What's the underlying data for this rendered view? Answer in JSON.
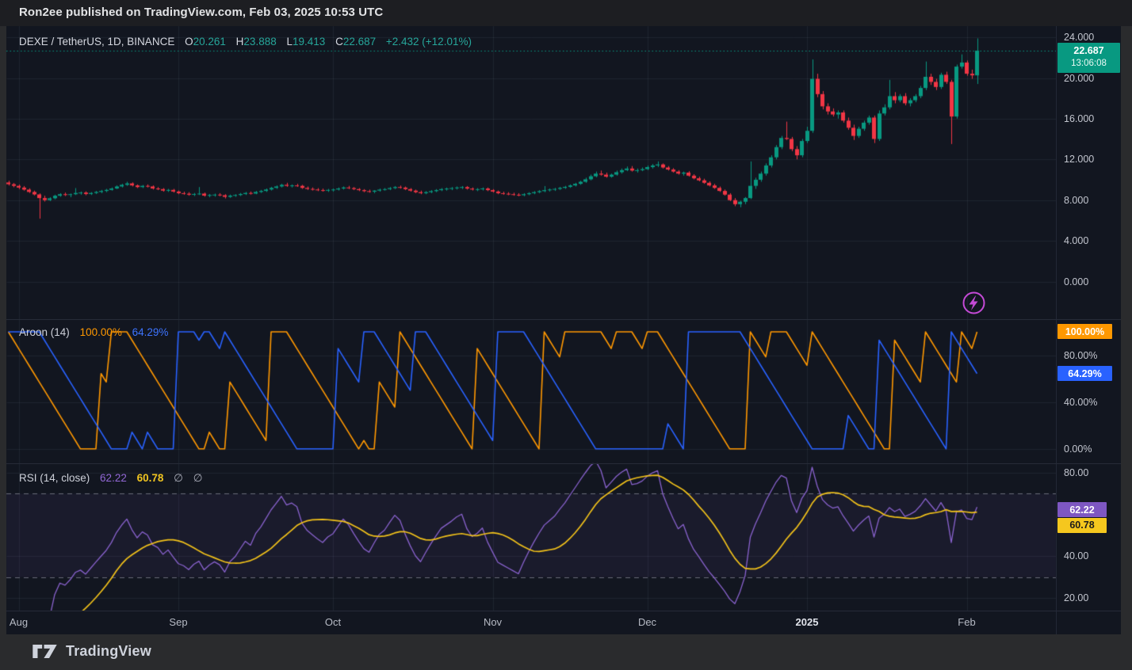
{
  "header": {
    "publish_text": "Ron2ee published on TradingView.com, Feb 03, 2025 10:53 UTC"
  },
  "chart": {
    "legend": {
      "symbol": "DEXE / TetherUS, 1D, BINANCE",
      "o_label": "O",
      "o": "20.261",
      "h_label": "H",
      "h": "23.888",
      "l_label": "L",
      "l": "19.413",
      "c_label": "C",
      "c": "22.687",
      "change": "+2.432 (+12.01%)"
    },
    "price_badge": {
      "price": "22.687",
      "countdown": "13:06:08",
      "value": 22.687
    }
  },
  "aroon": {
    "title": "Aroon (14)",
    "up_value": "100.00%",
    "down_value": "64.29%",
    "badges": {
      "up": "100.00%",
      "up_val": 100,
      "down": "64.29%",
      "down_val": 64.29
    }
  },
  "rsi": {
    "title": "RSI (14, close)",
    "value": "62.22",
    "ma_value": "60.78",
    "empty1": "∅",
    "empty2": "∅",
    "badges": {
      "rsi": "62.22",
      "rsi_val": 62.22,
      "ma": "60.78",
      "ma_val": 60.78
    }
  },
  "footer": {
    "brand": "TradingView"
  },
  "colors": {
    "up": "#089981",
    "down": "#f23645",
    "aroon_up": "#ff9800",
    "aroon_down": "#2962ff",
    "rsi": "#8a63cf",
    "rsi_ma": "#f2c21a",
    "rsi_band": "rgba(126,87,194,0.08)",
    "rsi_limit": "#6a6d7a",
    "grid": "rgba(197,203,224,0.08)",
    "last_price_line": "#089981",
    "flash": "#c44ad6",
    "chart_bg": "#121620"
  },
  "chart_data": {
    "type": "candlestick",
    "symbol": "DEXE / TetherUS",
    "interval": "1D",
    "exchange": "BINANCE",
    "last_price": 22.687,
    "change": 2.432,
    "change_pct": 12.01,
    "price_axis": {
      "range": [
        -3.66,
        25.09
      ],
      "ticks": [
        {
          "label": "24.000",
          "value": 24
        },
        {
          "label": "20.000",
          "value": 20
        },
        {
          "label": "16.000",
          "value": 16
        },
        {
          "label": "12.000",
          "value": 12
        },
        {
          "label": "8.000",
          "value": 8
        },
        {
          "label": "4.000",
          "value": 4
        },
        {
          "label": "0.000",
          "value": 0
        }
      ]
    },
    "aroon_axis": {
      "range": [
        -12.3,
        110.8
      ],
      "length": 14,
      "current_up": 100.0,
      "current_down": 64.29,
      "ticks": [
        {
          "label": "80.00%",
          "value": 80
        },
        {
          "label": "40.00%",
          "value": 40
        },
        {
          "label": "0.00%",
          "value": 0
        }
      ]
    },
    "rsi_axis": {
      "range": [
        13.9,
        84.6
      ],
      "length": 14,
      "source": "close",
      "current": 62.22,
      "current_ma": 60.78,
      "upper_limit": 70,
      "lower_limit": 30,
      "ticks": [
        {
          "label": "80.00",
          "value": 80
        },
        {
          "label": "40.00",
          "value": 40
        },
        {
          "label": "20.00",
          "value": 20
        }
      ]
    },
    "time_axis": {
      "months": [
        {
          "label": "Aug",
          "index": 2,
          "bold": false
        },
        {
          "label": "Sep",
          "index": 33,
          "bold": false
        },
        {
          "label": "Oct",
          "index": 63,
          "bold": false
        },
        {
          "label": "Nov",
          "index": 94,
          "bold": false
        },
        {
          "label": "Dec",
          "index": 124,
          "bold": false
        },
        {
          "label": "2025",
          "index": 155,
          "bold": true
        },
        {
          "label": "Feb",
          "index": 186,
          "bold": false
        }
      ],
      "start_date": "2024-07-30",
      "end_date": "2025-02-03"
    },
    "candles": [
      [
        9.75,
        9.92,
        9.45,
        9.58
      ],
      [
        9.58,
        9.7,
        9.28,
        9.42
      ],
      [
        9.42,
        9.55,
        9.1,
        9.25
      ],
      [
        9.25,
        9.4,
        8.95,
        9.05
      ],
      [
        9.05,
        9.18,
        8.72,
        8.82
      ],
      [
        8.82,
        8.95,
        8.48,
        8.58
      ],
      [
        8.58,
        8.68,
        6.2,
        8.22
      ],
      [
        8.22,
        8.45,
        7.88,
        8.02
      ],
      [
        8.02,
        8.3,
        7.92,
        8.2
      ],
      [
        8.2,
        8.55,
        8.1,
        8.45
      ],
      [
        8.45,
        8.7,
        8.35,
        8.6
      ],
      [
        8.6,
        8.76,
        8.42,
        8.52
      ],
      [
        8.52,
        8.66,
        8.3,
        8.6
      ],
      [
        8.6,
        9.2,
        8.52,
        8.72
      ],
      [
        8.72,
        8.86,
        8.55,
        8.76
      ],
      [
        8.76,
        8.88,
        8.5,
        8.62
      ],
      [
        8.62,
        8.8,
        8.52,
        8.72
      ],
      [
        8.72,
        8.92,
        8.62,
        8.82
      ],
      [
        8.82,
        9.02,
        8.7,
        8.92
      ],
      [
        8.92,
        9.12,
        8.8,
        9.02
      ],
      [
        9.02,
        9.26,
        8.95,
        9.16
      ],
      [
        9.16,
        9.46,
        9.1,
        9.36
      ],
      [
        9.36,
        9.62,
        9.26,
        9.52
      ],
      [
        9.52,
        9.82,
        9.42,
        9.66
      ],
      [
        9.66,
        9.76,
        9.36,
        9.46
      ],
      [
        9.46,
        9.56,
        9.2,
        9.3
      ],
      [
        9.3,
        9.5,
        9.2,
        9.42
      ],
      [
        9.42,
        9.56,
        9.26,
        9.36
      ],
      [
        9.36,
        9.46,
        9.06,
        9.16
      ],
      [
        9.16,
        9.3,
        9.0,
        9.1
      ],
      [
        9.1,
        9.2,
        8.85,
        8.95
      ],
      [
        8.95,
        9.12,
        8.82,
        9.02
      ],
      [
        9.02,
        9.12,
        8.76,
        8.86
      ],
      [
        8.86,
        8.96,
        8.6,
        8.7
      ],
      [
        8.7,
        8.85,
        8.55,
        8.65
      ],
      [
        8.65,
        8.8,
        8.45,
        8.55
      ],
      [
        8.55,
        8.72,
        8.42,
        8.62
      ],
      [
        8.62,
        9.3,
        8.52,
        8.66
      ],
      [
        8.66,
        8.76,
        8.36,
        8.46
      ],
      [
        8.46,
        8.62,
        8.3,
        8.52
      ],
      [
        8.52,
        8.66,
        8.36,
        8.56
      ],
      [
        8.56,
        8.7,
        8.4,
        8.5
      ],
      [
        8.5,
        8.6,
        8.18,
        8.34
      ],
      [
        8.34,
        8.56,
        8.24,
        8.46
      ],
      [
        8.46,
        8.6,
        8.34,
        8.52
      ],
      [
        8.52,
        8.72,
        8.42,
        8.62
      ],
      [
        8.62,
        8.82,
        8.52,
        8.72
      ],
      [
        8.72,
        8.86,
        8.56,
        8.66
      ],
      [
        8.66,
        8.92,
        8.6,
        8.82
      ],
      [
        8.82,
        9.02,
        8.72,
        8.92
      ],
      [
        8.92,
        9.16,
        8.82,
        9.06
      ],
      [
        9.06,
        9.32,
        8.96,
        9.22
      ],
      [
        9.22,
        9.46,
        9.12,
        9.36
      ],
      [
        9.36,
        9.62,
        9.26,
        9.52
      ],
      [
        9.52,
        9.72,
        9.32,
        9.42
      ],
      [
        9.42,
        9.56,
        9.26,
        9.46
      ],
      [
        9.46,
        9.62,
        9.32,
        9.42
      ],
      [
        9.42,
        9.52,
        9.12,
        9.22
      ],
      [
        9.22,
        9.36,
        9.02,
        9.12
      ],
      [
        9.12,
        9.26,
        8.96,
        9.06
      ],
      [
        9.06,
        9.2,
        8.9,
        9.0
      ],
      [
        9.0,
        9.15,
        8.85,
        8.95
      ],
      [
        8.95,
        9.12,
        8.82,
        9.02
      ],
      [
        9.02,
        9.16,
        8.86,
        9.06
      ],
      [
        9.06,
        9.26,
        8.96,
        9.16
      ],
      [
        9.16,
        9.36,
        9.06,
        9.26
      ],
      [
        9.26,
        9.42,
        9.1,
        9.2
      ],
      [
        9.2,
        9.3,
        9.0,
        9.1
      ],
      [
        9.1,
        9.2,
        8.9,
        9.0
      ],
      [
        9.0,
        9.1,
        8.8,
        8.9
      ],
      [
        8.9,
        9.05,
        8.75,
        8.85
      ],
      [
        8.85,
        9.0,
        8.7,
        8.95
      ],
      [
        8.95,
        9.15,
        8.85,
        9.05
      ],
      [
        9.05,
        9.2,
        8.95,
        9.1
      ],
      [
        9.1,
        9.3,
        9.0,
        9.2
      ],
      [
        9.2,
        9.4,
        9.1,
        9.3
      ],
      [
        9.3,
        9.45,
        9.15,
        9.25
      ],
      [
        9.25,
        9.35,
        9.0,
        9.1
      ],
      [
        9.1,
        9.2,
        8.85,
        8.95
      ],
      [
        8.95,
        9.05,
        8.7,
        8.8
      ],
      [
        8.8,
        8.95,
        8.6,
        8.7
      ],
      [
        8.7,
        8.9,
        8.6,
        8.8
      ],
      [
        8.8,
        9.0,
        8.7,
        8.9
      ],
      [
        8.9,
        9.1,
        8.8,
        9.0
      ],
      [
        9.0,
        9.2,
        8.9,
        9.1
      ],
      [
        9.1,
        9.25,
        8.95,
        9.15
      ],
      [
        9.15,
        9.3,
        9.0,
        9.2
      ],
      [
        9.2,
        9.36,
        9.06,
        9.26
      ],
      [
        9.26,
        9.4,
        9.1,
        9.3
      ],
      [
        9.3,
        9.4,
        9.05,
        9.15
      ],
      [
        9.15,
        9.26,
        8.96,
        9.06
      ],
      [
        9.06,
        9.2,
        8.9,
        9.1
      ],
      [
        9.1,
        9.26,
        8.96,
        9.16
      ],
      [
        9.16,
        9.26,
        8.9,
        9.0
      ],
      [
        9.0,
        9.1,
        8.76,
        8.86
      ],
      [
        8.86,
        8.96,
        8.6,
        8.7
      ],
      [
        8.7,
        8.85,
        8.55,
        8.65
      ],
      [
        8.65,
        8.8,
        8.5,
        8.6
      ],
      [
        8.6,
        8.75,
        8.45,
        8.55
      ],
      [
        8.55,
        8.7,
        8.4,
        8.5
      ],
      [
        8.5,
        8.7,
        8.4,
        8.6
      ],
      [
        8.6,
        8.8,
        8.5,
        8.7
      ],
      [
        8.7,
        8.9,
        8.6,
        8.8
      ],
      [
        8.8,
        9.0,
        8.7,
        8.9
      ],
      [
        8.9,
        9.4,
        8.8,
        9.0
      ],
      [
        9.0,
        9.16,
        8.86,
        9.06
      ],
      [
        9.06,
        9.22,
        8.92,
        9.12
      ],
      [
        9.12,
        9.32,
        9.02,
        9.22
      ],
      [
        9.22,
        9.42,
        9.12,
        9.32
      ],
      [
        9.32,
        9.56,
        9.22,
        9.46
      ],
      [
        9.46,
        9.72,
        9.36,
        9.62
      ],
      [
        9.62,
        9.92,
        9.52,
        9.82
      ],
      [
        9.82,
        10.22,
        9.72,
        10.06
      ],
      [
        10.06,
        10.52,
        9.96,
        10.36
      ],
      [
        10.36,
        10.82,
        10.26,
        10.62
      ],
      [
        10.62,
        10.92,
        10.42,
        10.52
      ],
      [
        10.52,
        10.72,
        10.22,
        10.32
      ],
      [
        10.32,
        10.62,
        10.22,
        10.52
      ],
      [
        10.52,
        10.92,
        10.42,
        10.76
      ],
      [
        10.76,
        11.12,
        10.62,
        10.96
      ],
      [
        10.96,
        11.32,
        10.86,
        11.12
      ],
      [
        11.12,
        11.36,
        10.82,
        10.92
      ],
      [
        10.92,
        11.12,
        10.72,
        10.96
      ],
      [
        10.96,
        11.22,
        10.86,
        11.06
      ],
      [
        11.06,
        11.42,
        10.96,
        11.26
      ],
      [
        11.26,
        11.56,
        11.12,
        11.42
      ],
      [
        11.42,
        11.82,
        11.26,
        11.52
      ],
      [
        11.52,
        11.62,
        11.12,
        11.22
      ],
      [
        11.22,
        11.36,
        10.92,
        11.02
      ],
      [
        11.02,
        11.16,
        10.72,
        10.82
      ],
      [
        10.82,
        10.96,
        10.52,
        10.62
      ],
      [
        10.62,
        10.82,
        10.42,
        10.72
      ],
      [
        10.72,
        10.86,
        10.32,
        10.42
      ],
      [
        10.42,
        10.56,
        10.06,
        10.16
      ],
      [
        10.16,
        10.32,
        9.86,
        9.96
      ],
      [
        9.96,
        10.12,
        9.62,
        9.72
      ],
      [
        9.72,
        9.86,
        9.36,
        9.46
      ],
      [
        9.46,
        9.62,
        9.12,
        9.22
      ],
      [
        9.22,
        9.36,
        8.82,
        8.92
      ],
      [
        8.92,
        9.06,
        8.46,
        8.56
      ],
      [
        8.56,
        8.7,
        7.92,
        8.02
      ],
      [
        8.02,
        8.22,
        7.42,
        7.62
      ],
      [
        7.62,
        7.96,
        7.32,
        7.86
      ],
      [
        7.86,
        8.32,
        7.62,
        8.22
      ],
      [
        8.22,
        11.82,
        8.12,
        9.42
      ],
      [
        9.42,
        10.22,
        9.12,
        10.02
      ],
      [
        10.02,
        10.82,
        9.82,
        10.62
      ],
      [
        10.62,
        11.62,
        10.42,
        11.42
      ],
      [
        11.42,
        12.42,
        11.22,
        12.22
      ],
      [
        12.22,
        13.42,
        12.02,
        13.22
      ],
      [
        13.22,
        14.32,
        13.02,
        14.12
      ],
      [
        14.12,
        15.72,
        13.92,
        14.02
      ],
      [
        14.02,
        14.22,
        12.82,
        13.02
      ],
      [
        13.02,
        13.32,
        12.02,
        12.42
      ],
      [
        12.42,
        14.02,
        12.22,
        13.82
      ],
      [
        13.82,
        15.22,
        13.62,
        14.82
      ],
      [
        14.82,
        21.82,
        14.62,
        19.92
      ],
      [
        19.92,
        20.42,
        18.12,
        18.42
      ],
      [
        18.42,
        18.72,
        16.92,
        17.22
      ],
      [
        17.22,
        17.52,
        16.42,
        16.72
      ],
      [
        16.72,
        17.02,
        16.22,
        16.42
      ],
      [
        16.42,
        16.82,
        16.02,
        16.62
      ],
      [
        16.62,
        16.82,
        15.62,
        15.82
      ],
      [
        15.82,
        16.12,
        14.92,
        15.12
      ],
      [
        15.12,
        15.42,
        13.92,
        14.32
      ],
      [
        14.32,
        15.22,
        14.12,
        15.02
      ],
      [
        15.02,
        15.82,
        14.82,
        15.62
      ],
      [
        15.62,
        16.32,
        15.42,
        16.12
      ],
      [
        16.12,
        16.32,
        13.62,
        14.02
      ],
      [
        14.02,
        16.82,
        13.82,
        16.52
      ],
      [
        16.52,
        17.42,
        16.32,
        17.12
      ],
      [
        17.12,
        19.82,
        16.92,
        18.22
      ],
      [
        18.22,
        18.62,
        17.52,
        17.82
      ],
      [
        17.82,
        18.42,
        17.62,
        18.22
      ],
      [
        18.22,
        18.52,
        17.32,
        17.52
      ],
      [
        17.52,
        18.02,
        17.22,
        17.82
      ],
      [
        17.82,
        18.42,
        17.62,
        18.22
      ],
      [
        18.22,
        19.22,
        18.02,
        19.02
      ],
      [
        19.02,
        21.62,
        18.82,
        20.12
      ],
      [
        20.12,
        20.42,
        19.32,
        19.62
      ],
      [
        19.62,
        19.92,
        18.82,
        19.12
      ],
      [
        19.12,
        20.52,
        18.92,
        20.32
      ],
      [
        20.32,
        20.62,
        19.42,
        19.62
      ],
      [
        19.62,
        19.82,
        13.52,
        16.22
      ],
      [
        16.22,
        21.32,
        16.02,
        21.12
      ],
      [
        21.12,
        22.32,
        20.92,
        21.52
      ],
      [
        21.52,
        21.72,
        20.22,
        20.42
      ],
      [
        20.42,
        20.82,
        19.92,
        20.26
      ],
      [
        20.261,
        23.888,
        19.413,
        22.687
      ]
    ]
  }
}
